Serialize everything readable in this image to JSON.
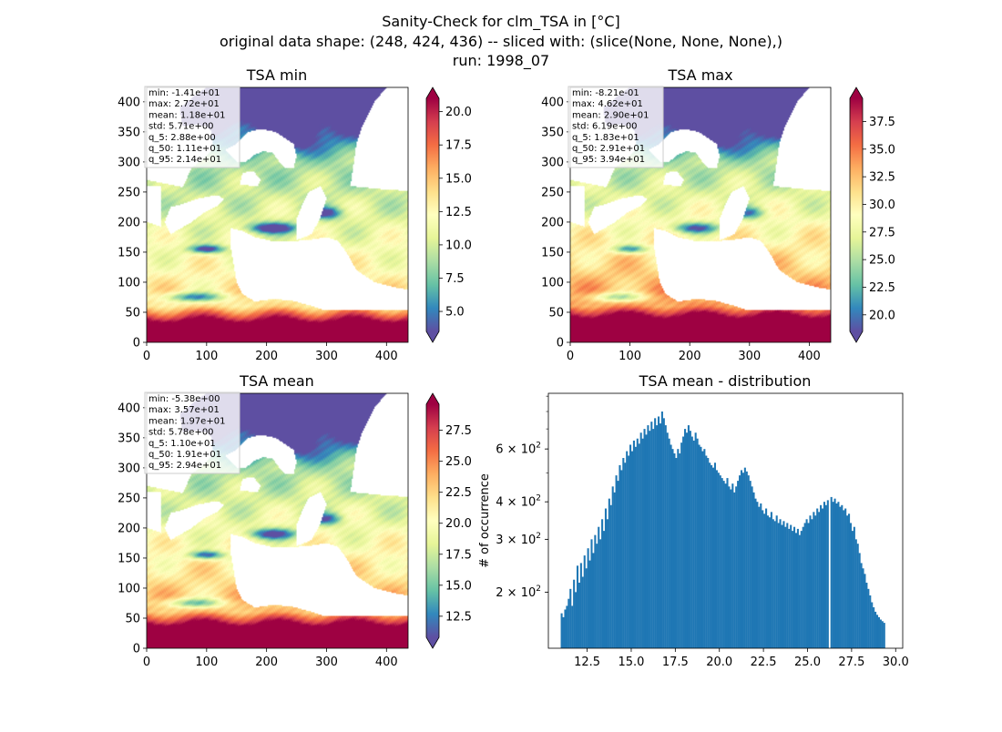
{
  "suptitle": {
    "line1": "Sanity-Check for clm_TSA in [°C]",
    "line2": "original data shape: (248, 424, 436) -- sliced with: (slice(None, None, None),)",
    "line3": "run: 1998_07"
  },
  "colors": {
    "colormap": [
      "#5e4fa2",
      "#3288bd",
      "#66c2a5",
      "#abdda4",
      "#e6f598",
      "#ffffbf",
      "#fee08b",
      "#fdae61",
      "#f46d43",
      "#d53e4f",
      "#9e0142"
    ],
    "histogram": "#1f77b4"
  },
  "chart_data": [
    {
      "type": "heatmap",
      "title": "TSA min",
      "x_ticks": [
        0,
        100,
        200,
        300,
        400
      ],
      "y_ticks": [
        0,
        50,
        100,
        150,
        200,
        250,
        300,
        350,
        400
      ],
      "xlim": [
        0,
        436
      ],
      "ylim": [
        0,
        424
      ],
      "colorbar": {
        "range": [
          3.5,
          21.0
        ],
        "ticks": [
          "5.0",
          "7.5",
          "10.0",
          "12.5",
          "15.0",
          "17.5",
          "20.0"
        ],
        "tick_values": [
          5.0,
          7.5,
          10.0,
          12.5,
          15.0,
          17.5,
          20.0
        ],
        "extend": "both"
      },
      "stats": [
        "min: -1.41e+01",
        "max: 2.72e+01",
        "mean: 1.18e+01",
        "std: 5.71e+00",
        "q_5: 2.88e+00",
        "q_50: 1.11e+01",
        "q_95: 2.14e+01"
      ],
      "field": {
        "gradient": 0.55,
        "mountain": 0.55,
        "north": 0.9,
        "desert": 1.0
      }
    },
    {
      "type": "heatmap",
      "title": "TSA max",
      "x_ticks": [
        0,
        100,
        200,
        300,
        400
      ],
      "y_ticks": [
        0,
        50,
        100,
        150,
        200,
        250,
        300,
        350,
        400
      ],
      "xlim": [
        0,
        436
      ],
      "ylim": [
        0,
        424
      ],
      "colorbar": {
        "range": [
          18.5,
          39.6
        ],
        "ticks": [
          "20.0",
          "22.5",
          "25.0",
          "27.5",
          "30.0",
          "32.5",
          "35.0",
          "37.5"
        ],
        "tick_values": [
          20.0,
          22.5,
          25.0,
          27.5,
          30.0,
          32.5,
          35.0,
          37.5
        ],
        "extend": "both"
      },
      "stats": [
        "min: -8.21e-01",
        "max: 4.62e+01",
        "mean: 2.90e+01",
        "std: 6.19e+00",
        "q_5: 1.83e+01",
        "q_50: 2.91e+01",
        "q_95: 3.94e+01"
      ],
      "field": {
        "gradient": 0.78,
        "mountain": 0.45,
        "north": 1.0,
        "desert": 1.0
      }
    },
    {
      "type": "heatmap",
      "title": "TSA mean",
      "x_ticks": [
        0,
        100,
        200,
        300,
        400
      ],
      "y_ticks": [
        0,
        50,
        100,
        150,
        200,
        250,
        300,
        350,
        400
      ],
      "xlim": [
        0,
        436
      ],
      "ylim": [
        0,
        424
      ],
      "colorbar": {
        "range": [
          10.8,
          29.6
        ],
        "ticks": [
          "12.5",
          "15.0",
          "17.5",
          "20.0",
          "22.5",
          "25.0",
          "27.5"
        ],
        "tick_values": [
          12.5,
          15.0,
          17.5,
          20.0,
          22.5,
          25.0,
          27.5
        ],
        "extend": "both"
      },
      "stats": [
        "min: -5.38e+00",
        "max: 3.57e+01",
        "mean: 1.97e+01",
        "std: 5.78e+00",
        "q_5: 1.10e+01",
        "q_50: 1.91e+01",
        "q_95: 2.94e+01"
      ],
      "field": {
        "gradient": 0.68,
        "mountain": 0.5,
        "north": 0.95,
        "desert": 1.0
      }
    },
    {
      "type": "bar",
      "title": "TSA mean - distribution",
      "ylabel": "# of occurrence",
      "yscale": "log",
      "xlim": [
        10.3,
        30.4
      ],
      "ylim": [
        130,
        920
      ],
      "x_ticks": [
        "12.5",
        "15.0",
        "17.5",
        "20.0",
        "22.5",
        "25.0",
        "27.5",
        "30.0"
      ],
      "x_tick_values": [
        12.5,
        15.0,
        17.5,
        20.0,
        22.5,
        25.0,
        27.5,
        30.0
      ],
      "y_ticks": [
        {
          "value": 200,
          "base": "2 × 10",
          "exp": "2"
        },
        {
          "value": 300,
          "base": "3 × 10",
          "exp": "2"
        },
        {
          "value": 400,
          "base": "4 × 10",
          "exp": "2"
        },
        {
          "value": 600,
          "base": "6 × 10",
          "exp": "2"
        }
      ],
      "bin_width": 0.1,
      "bins": [
        {
          "x": 11.0,
          "y": 170
        },
        {
          "x": 11.1,
          "y": 165
        },
        {
          "x": 11.2,
          "y": 175
        },
        {
          "x": 11.3,
          "y": 180
        },
        {
          "x": 11.4,
          "y": 190
        },
        {
          "x": 11.5,
          "y": 205
        },
        {
          "x": 11.6,
          "y": 180
        },
        {
          "x": 11.7,
          "y": 220
        },
        {
          "x": 11.8,
          "y": 200
        },
        {
          "x": 11.9,
          "y": 245
        },
        {
          "x": 12.0,
          "y": 215
        },
        {
          "x": 12.1,
          "y": 250
        },
        {
          "x": 12.2,
          "y": 225
        },
        {
          "x": 12.3,
          "y": 265
        },
        {
          "x": 12.4,
          "y": 240
        },
        {
          "x": 12.5,
          "y": 280
        },
        {
          "x": 12.6,
          "y": 255
        },
        {
          "x": 12.7,
          "y": 300
        },
        {
          "x": 12.8,
          "y": 270
        },
        {
          "x": 12.9,
          "y": 310
        },
        {
          "x": 13.0,
          "y": 290
        },
        {
          "x": 13.1,
          "y": 330
        },
        {
          "x": 13.2,
          "y": 300
        },
        {
          "x": 13.3,
          "y": 350
        },
        {
          "x": 13.4,
          "y": 320
        },
        {
          "x": 13.5,
          "y": 380
        },
        {
          "x": 13.6,
          "y": 350
        },
        {
          "x": 13.7,
          "y": 410
        },
        {
          "x": 13.8,
          "y": 390
        },
        {
          "x": 13.9,
          "y": 450
        },
        {
          "x": 14.0,
          "y": 430
        },
        {
          "x": 14.1,
          "y": 490
        },
        {
          "x": 14.2,
          "y": 470
        },
        {
          "x": 14.3,
          "y": 530
        },
        {
          "x": 14.4,
          "y": 510
        },
        {
          "x": 14.5,
          "y": 560
        },
        {
          "x": 14.6,
          "y": 540
        },
        {
          "x": 14.7,
          "y": 590
        },
        {
          "x": 14.8,
          "y": 570
        },
        {
          "x": 14.9,
          "y": 620
        },
        {
          "x": 15.0,
          "y": 590
        },
        {
          "x": 15.1,
          "y": 640
        },
        {
          "x": 15.2,
          "y": 610
        },
        {
          "x": 15.3,
          "y": 650
        },
        {
          "x": 15.4,
          "y": 625
        },
        {
          "x": 15.5,
          "y": 680
        },
        {
          "x": 15.6,
          "y": 650
        },
        {
          "x": 15.7,
          "y": 700
        },
        {
          "x": 15.8,
          "y": 670
        },
        {
          "x": 15.9,
          "y": 720
        },
        {
          "x": 16.0,
          "y": 690
        },
        {
          "x": 16.1,
          "y": 740
        },
        {
          "x": 16.2,
          "y": 700
        },
        {
          "x": 16.3,
          "y": 760
        },
        {
          "x": 16.4,
          "y": 720
        },
        {
          "x": 16.5,
          "y": 770
        },
        {
          "x": 16.6,
          "y": 730
        },
        {
          "x": 16.7,
          "y": 800
        },
        {
          "x": 16.8,
          "y": 760
        },
        {
          "x": 16.9,
          "y": 720
        },
        {
          "x": 17.0,
          "y": 680
        },
        {
          "x": 17.1,
          "y": 650
        },
        {
          "x": 17.2,
          "y": 620
        },
        {
          "x": 17.3,
          "y": 600
        },
        {
          "x": 17.4,
          "y": 580
        },
        {
          "x": 17.5,
          "y": 560
        },
        {
          "x": 17.6,
          "y": 600
        },
        {
          "x": 17.7,
          "y": 580
        },
        {
          "x": 17.8,
          "y": 630
        },
        {
          "x": 17.9,
          "y": 660
        },
        {
          "x": 18.0,
          "y": 700
        },
        {
          "x": 18.1,
          "y": 680
        },
        {
          "x": 18.2,
          "y": 720
        },
        {
          "x": 18.3,
          "y": 690
        },
        {
          "x": 18.4,
          "y": 660
        },
        {
          "x": 18.5,
          "y": 640
        },
        {
          "x": 18.6,
          "y": 680
        },
        {
          "x": 18.7,
          "y": 650
        },
        {
          "x": 18.8,
          "y": 620
        },
        {
          "x": 18.9,
          "y": 610
        },
        {
          "x": 19.0,
          "y": 590
        },
        {
          "x": 19.1,
          "y": 600
        },
        {
          "x": 19.2,
          "y": 570
        },
        {
          "x": 19.3,
          "y": 560
        },
        {
          "x": 19.4,
          "y": 540
        },
        {
          "x": 19.5,
          "y": 530
        },
        {
          "x": 19.6,
          "y": 520
        },
        {
          "x": 19.7,
          "y": 540
        },
        {
          "x": 19.8,
          "y": 510
        },
        {
          "x": 19.9,
          "y": 500
        },
        {
          "x": 20.0,
          "y": 490
        },
        {
          "x": 20.1,
          "y": 480
        },
        {
          "x": 20.2,
          "y": 470
        },
        {
          "x": 20.3,
          "y": 460
        },
        {
          "x": 20.4,
          "y": 480
        },
        {
          "x": 20.5,
          "y": 450
        },
        {
          "x": 20.6,
          "y": 440
        },
        {
          "x": 20.7,
          "y": 460
        },
        {
          "x": 20.8,
          "y": 430
        },
        {
          "x": 20.9,
          "y": 450
        },
        {
          "x": 21.0,
          "y": 470
        },
        {
          "x": 21.1,
          "y": 490
        },
        {
          "x": 21.2,
          "y": 510
        },
        {
          "x": 21.3,
          "y": 500
        },
        {
          "x": 21.4,
          "y": 520
        },
        {
          "x": 21.5,
          "y": 505
        },
        {
          "x": 21.6,
          "y": 490
        },
        {
          "x": 21.7,
          "y": 470
        },
        {
          "x": 21.8,
          "y": 450
        },
        {
          "x": 21.9,
          "y": 430
        },
        {
          "x": 22.0,
          "y": 410
        },
        {
          "x": 22.1,
          "y": 400
        },
        {
          "x": 22.2,
          "y": 385
        },
        {
          "x": 22.3,
          "y": 395
        },
        {
          "x": 22.4,
          "y": 375
        },
        {
          "x": 22.5,
          "y": 365
        },
        {
          "x": 22.6,
          "y": 380
        },
        {
          "x": 22.7,
          "y": 360
        },
        {
          "x": 22.8,
          "y": 355
        },
        {
          "x": 22.9,
          "y": 370
        },
        {
          "x": 23.0,
          "y": 350
        },
        {
          "x": 23.1,
          "y": 345
        },
        {
          "x": 23.2,
          "y": 360
        },
        {
          "x": 23.3,
          "y": 340
        },
        {
          "x": 23.4,
          "y": 350
        },
        {
          "x": 23.5,
          "y": 335
        },
        {
          "x": 23.6,
          "y": 345
        },
        {
          "x": 23.7,
          "y": 330
        },
        {
          "x": 23.8,
          "y": 340
        },
        {
          "x": 23.9,
          "y": 325
        },
        {
          "x": 24.0,
          "y": 335
        },
        {
          "x": 24.1,
          "y": 320
        },
        {
          "x": 24.2,
          "y": 330
        },
        {
          "x": 24.3,
          "y": 315
        },
        {
          "x": 24.4,
          "y": 325
        },
        {
          "x": 24.5,
          "y": 310
        },
        {
          "x": 24.6,
          "y": 320
        },
        {
          "x": 24.7,
          "y": 330
        },
        {
          "x": 24.8,
          "y": 340
        },
        {
          "x": 24.9,
          "y": 350
        },
        {
          "x": 25.0,
          "y": 340
        },
        {
          "x": 25.1,
          "y": 360
        },
        {
          "x": 25.2,
          "y": 350
        },
        {
          "x": 25.3,
          "y": 370
        },
        {
          "x": 25.4,
          "y": 360
        },
        {
          "x": 25.5,
          "y": 380
        },
        {
          "x": 25.6,
          "y": 370
        },
        {
          "x": 25.7,
          "y": 390
        },
        {
          "x": 25.8,
          "y": 380
        },
        {
          "x": 25.9,
          "y": 400
        },
        {
          "x": 26.0,
          "y": 390
        },
        {
          "x": 26.1,
          "y": 405
        },
        {
          "x": 26.3,
          "y": 415
        },
        {
          "x": 26.4,
          "y": 400
        },
        {
          "x": 26.5,
          "y": 410
        },
        {
          "x": 26.6,
          "y": 395
        },
        {
          "x": 26.7,
          "y": 400
        },
        {
          "x": 26.8,
          "y": 385
        },
        {
          "x": 26.9,
          "y": 390
        },
        {
          "x": 27.0,
          "y": 375
        },
        {
          "x": 27.1,
          "y": 380
        },
        {
          "x": 27.2,
          "y": 360
        },
        {
          "x": 27.3,
          "y": 365
        },
        {
          "x": 27.4,
          "y": 340
        },
        {
          "x": 27.5,
          "y": 320
        },
        {
          "x": 27.6,
          "y": 330
        },
        {
          "x": 27.7,
          "y": 300
        },
        {
          "x": 27.8,
          "y": 290
        },
        {
          "x": 27.9,
          "y": 270
        },
        {
          "x": 28.0,
          "y": 250
        },
        {
          "x": 28.1,
          "y": 240
        },
        {
          "x": 28.2,
          "y": 230
        },
        {
          "x": 28.3,
          "y": 215
        },
        {
          "x": 28.4,
          "y": 205
        },
        {
          "x": 28.5,
          "y": 195
        },
        {
          "x": 28.6,
          "y": 185
        },
        {
          "x": 28.7,
          "y": 178
        },
        {
          "x": 28.8,
          "y": 172
        },
        {
          "x": 28.9,
          "y": 168
        },
        {
          "x": 29.0,
          "y": 165
        },
        {
          "x": 29.1,
          "y": 162
        },
        {
          "x": 29.2,
          "y": 160
        },
        {
          "x": 29.3,
          "y": 158
        }
      ]
    }
  ]
}
